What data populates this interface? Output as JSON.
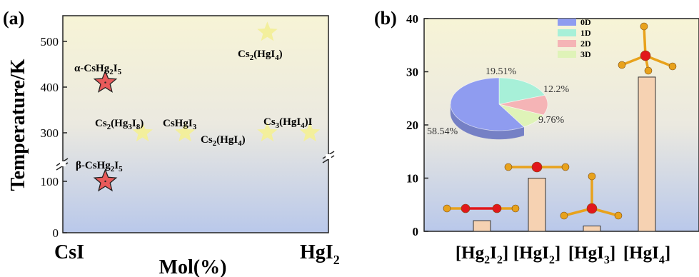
{
  "chart_data": [
    {
      "panel_label": "(a)",
      "type": "scatter",
      "xlabel": "Mol(%)",
      "ylabel": "Temperature/K",
      "x_end_labels": [
        "CsI",
        "HgI",
        "2"
      ],
      "y_ticks": [
        0,
        100,
        300,
        400,
        500
      ],
      "ylim": [
        0,
        550
      ],
      "axis_break": [
        150,
        250
      ],
      "background_gradient": [
        "#f7f4d6",
        "#b9c8ea"
      ],
      "points": [
        {
          "label": "α-CsHg",
          "sub": "2",
          "label2": "I",
          "sub2": "5",
          "label3": "",
          "x": 0.16,
          "y": 410,
          "marker": "star",
          "color": "#e85a5a"
        },
        {
          "label": "β-CsHg",
          "sub": "2",
          "label2": "I",
          "sub2": "5",
          "label3": "",
          "x": 0.16,
          "y": 100,
          "marker": "star",
          "color": "#e85a5a"
        },
        {
          "label": "Cs",
          "sub": "2",
          "label2": "(HgI",
          "sub2": "4",
          "label3": ")",
          "x": 0.77,
          "y": 520,
          "marker": "star",
          "color": "#f3ef9c"
        },
        {
          "label": "Cs",
          "sub": "2",
          "label2": "(Hg",
          "sub2": "3",
          "label3": "I",
          "sub3": "8",
          "label4": ")",
          "x": 0.3,
          "y": 300,
          "marker": "star",
          "color": "#f3ef9c"
        },
        {
          "label": "CsHgI",
          "sub": "3",
          "label2": "",
          "sub2": "",
          "label3": "",
          "x": 0.46,
          "y": 300,
          "marker": "star",
          "color": "#f3ef9c"
        },
        {
          "label": "Cs",
          "sub": "2",
          "label2": "(HgI",
          "sub2": "4",
          "label3": ")",
          "x": 0.77,
          "y": 300,
          "marker": "star",
          "color": "#f3ef9c"
        },
        {
          "label": "Cs",
          "sub": "3",
          "label2": "(HgI",
          "sub2": "4",
          "label3": ")I",
          "x": 0.93,
          "y": 300,
          "marker": "star",
          "color": "#f3ef9c"
        }
      ]
    },
    {
      "panel_label": "(b)",
      "type": "bar",
      "categories": [
        {
          "pre": "[Hg",
          "s1": "2",
          "mid": "I",
          "s2": "2",
          "post": "]"
        },
        {
          "pre": "[HgI",
          "s1": "2",
          "mid": "]",
          "s2": "",
          "post": ""
        },
        {
          "pre": "[HgI",
          "s1": "3",
          "mid": "]",
          "s2": "",
          "post": ""
        },
        {
          "pre": "[HgI",
          "s1": "4",
          "mid": "]",
          "s2": "",
          "post": ""
        }
      ],
      "values": [
        2,
        10,
        1,
        29
      ],
      "ylim": [
        0,
        40
      ],
      "y_ticks": [
        0,
        10,
        20,
        30,
        40
      ],
      "bar_color": "#f6d2b2",
      "background_gradient": [
        "#f7f4d6",
        "#b9c8ea"
      ],
      "inset_pie": {
        "type": "pie",
        "legend": [
          {
            "label": "0D",
            "color": "#8f9cf0"
          },
          {
            "label": "1D",
            "color": "#a7f0d8"
          },
          {
            "label": "2D",
            "color": "#f5b4b6"
          },
          {
            "label": "3D",
            "color": "#dff3b8"
          }
        ],
        "slices": [
          {
            "name": "0D",
            "value": 58.54,
            "label": "58.54%"
          },
          {
            "name": "1D",
            "value": 19.51,
            "label": "19.51%"
          },
          {
            "name": "2D",
            "value": 12.2,
            "label": "12.2%"
          },
          {
            "name": "3D",
            "value": 9.76,
            "label": "9.76%"
          }
        ]
      },
      "atom_colors": {
        "hg": "#e2171b",
        "i": "#e8a21c"
      }
    }
  ]
}
